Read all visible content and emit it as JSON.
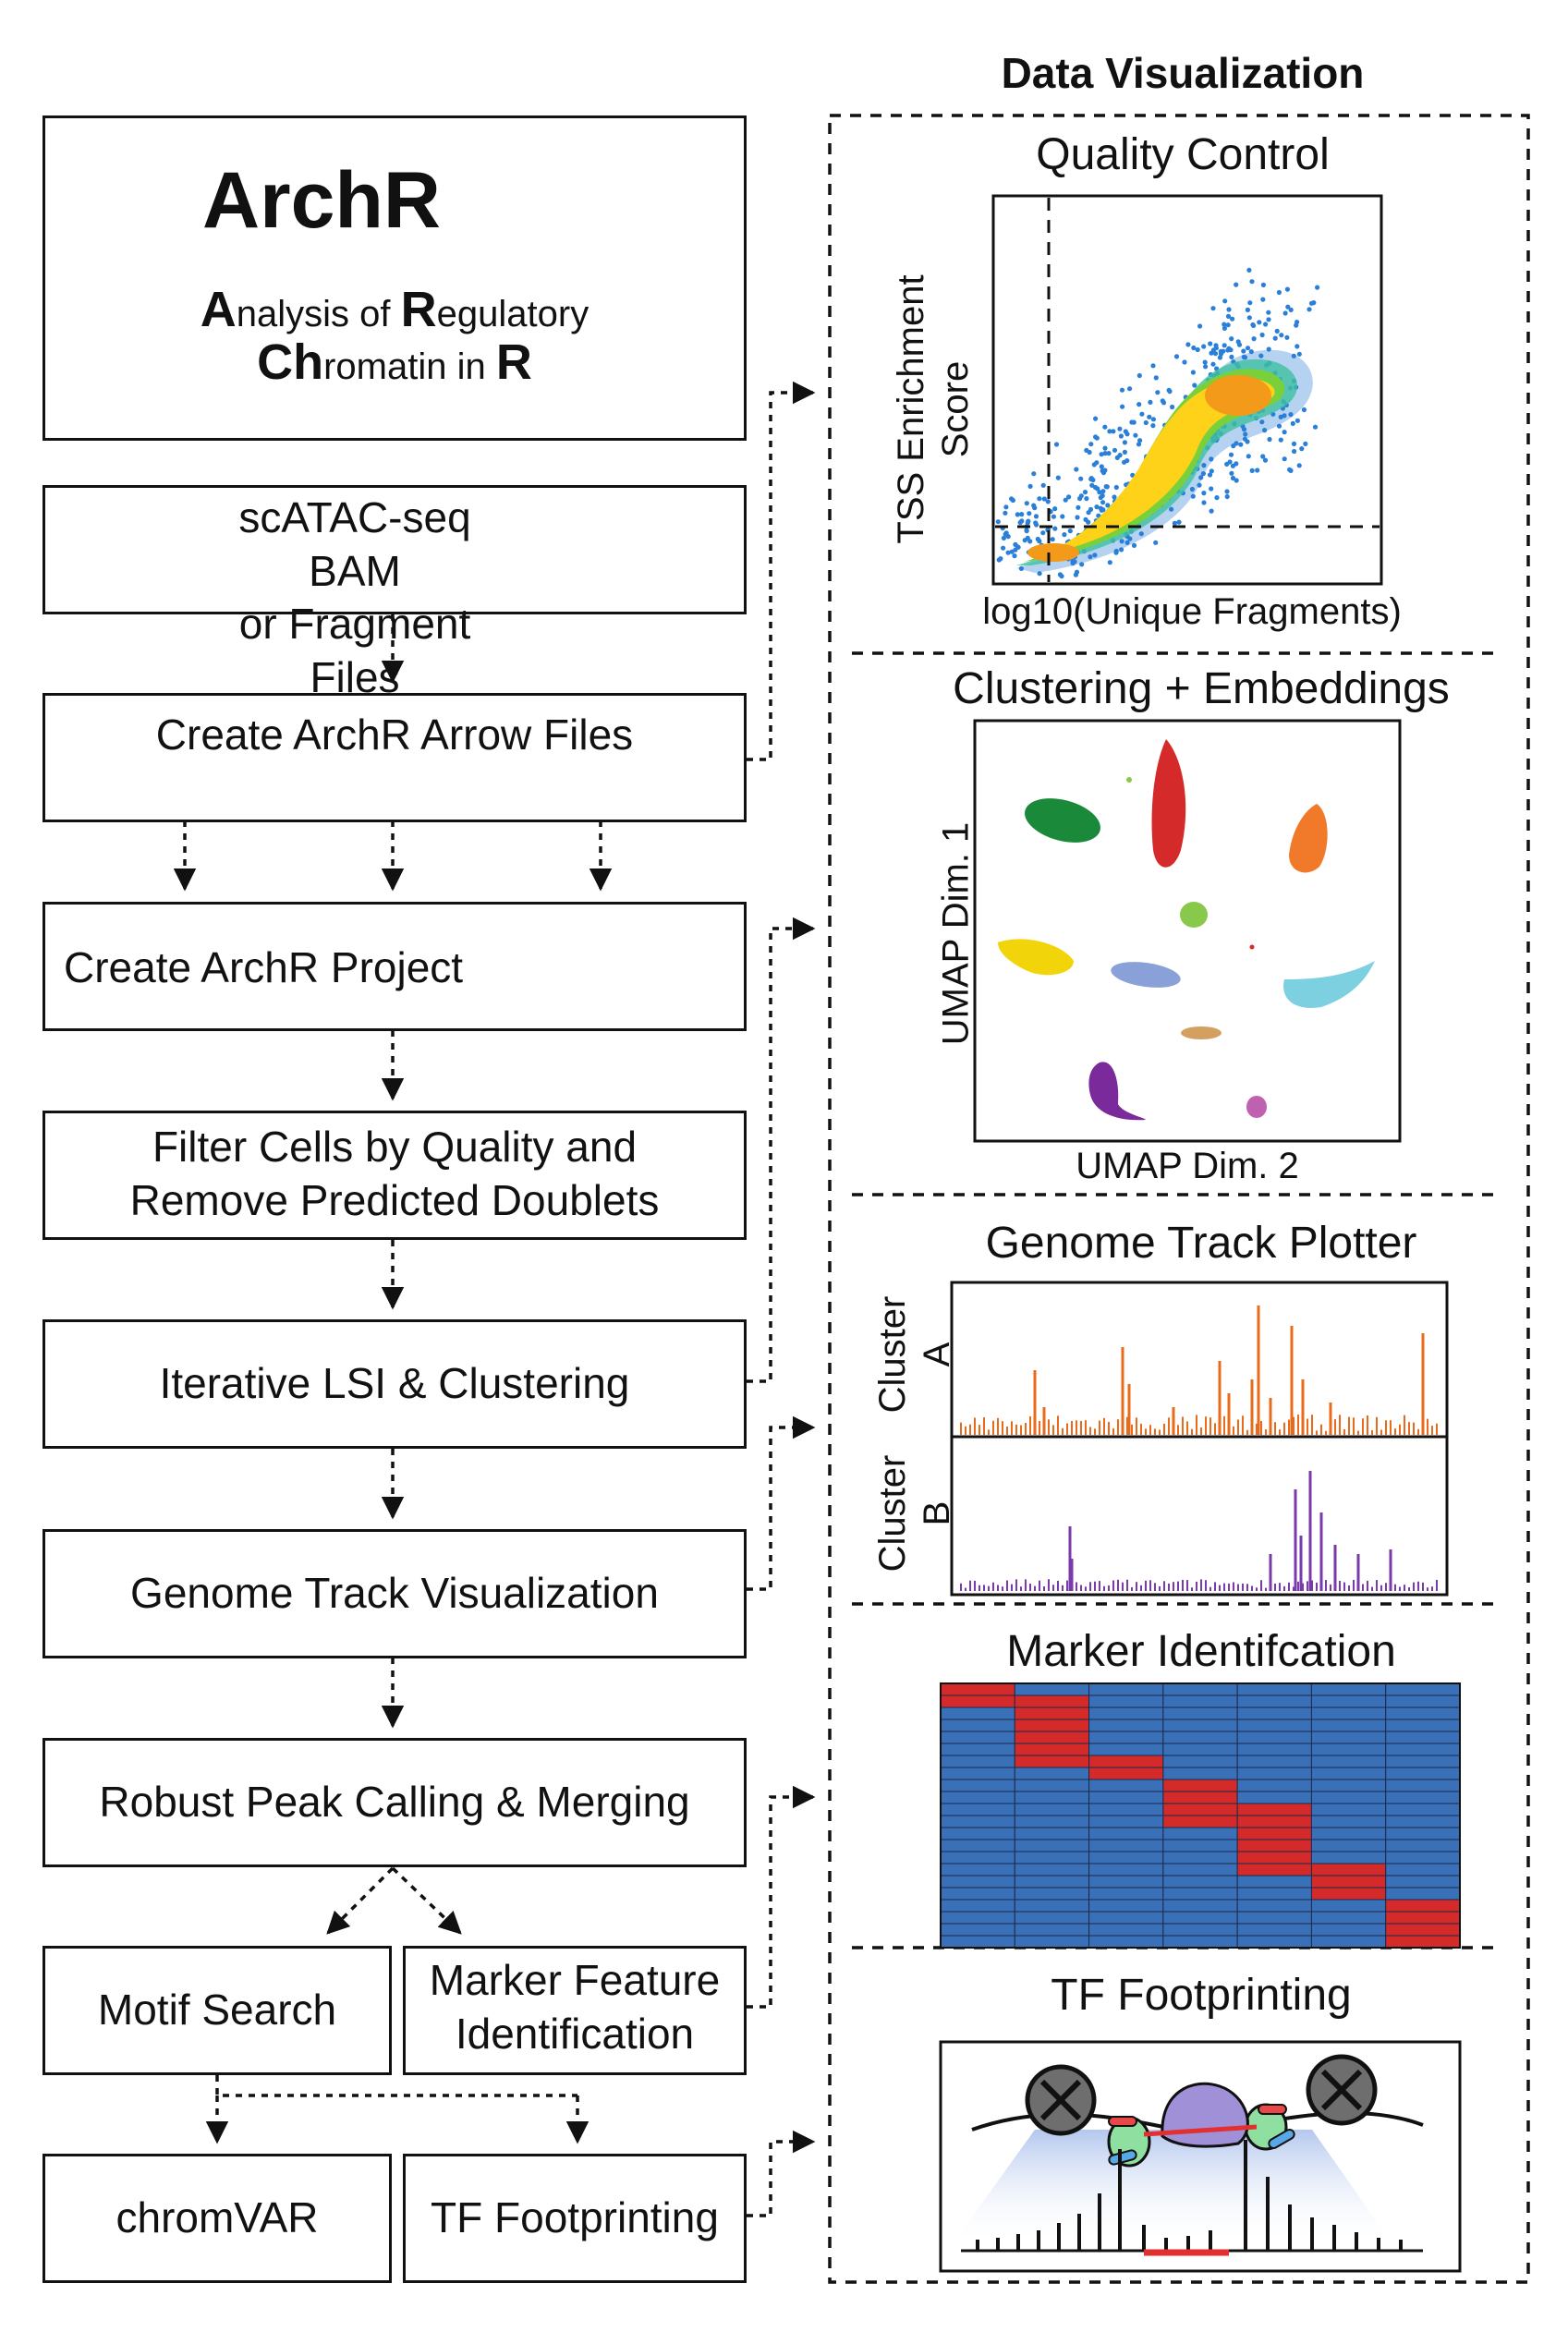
{
  "header": {
    "data_visualization": "Data Visualization"
  },
  "logo": {
    "name": "ArchR",
    "line1": {
      "big1": "A",
      "small1": "nalysis of ",
      "big2": "R",
      "small2": "egulatory"
    },
    "line2": {
      "big1": "Ch",
      "small1": "romatin in ",
      "big2": "R"
    }
  },
  "pipeline": {
    "input": "scATAC-seq BAM\nor Fragment Files",
    "arrow_files": "Create ArchR Arrow Files",
    "project": "Create ArchR Project",
    "filter": "Filter Cells by Quality and\nRemove Predicted Doublets",
    "lsi": "Iterative LSI & Clustering",
    "genome_track": "Genome Track Visualization",
    "peak_calling": "Robust Peak Calling & Merging",
    "motif": "Motif Search",
    "marker": "Marker Feature\nIdentification",
    "chromvar": "chromVAR",
    "footprint": "TF Footprinting"
  },
  "panels": {
    "qc": {
      "title": "Quality Control",
      "xlabel": "log10(Unique Fragments)",
      "ylabel": "TSS Enrichment\nScore"
    },
    "clustering": {
      "title": "Clustering + Embeddings",
      "xlabel": "UMAP Dim. 2",
      "ylabel": "UMAP Dim. 1"
    },
    "genome": {
      "title": "Genome Track Plotter",
      "track_a": "Cluster\nA",
      "track_b": "Cluster\nB"
    },
    "marker": {
      "title": "Marker Identifcation"
    },
    "tf": {
      "title": "TF Footprinting"
    }
  },
  "colors": {
    "cluster_colors": [
      "#1a8a3a",
      "#d42a2a",
      "#f07a2a",
      "#88c84a",
      "#f2d40a",
      "#8aa0d8",
      "#7dd0e0",
      "#d4a060",
      "#7a2a9a",
      "#c060b0"
    ],
    "track_a": "#e86a1a",
    "track_b": "#7a3aaa",
    "heatmap_high": "#d42a2a",
    "heatmap_low": "#3a70b8",
    "folder": "#f4c060"
  },
  "chart_data": {
    "type": "heatmap",
    "rows": 22,
    "columns": 7,
    "high_blocks": [
      {
        "column": 1,
        "rows": [
          0,
          1
        ]
      },
      {
        "column": 2,
        "rows": [
          1,
          2,
          3,
          4,
          5,
          6
        ]
      },
      {
        "column": 3,
        "rows": [
          6,
          7
        ]
      },
      {
        "column": 4,
        "rows": [
          8,
          9,
          10,
          11
        ]
      },
      {
        "column": 5,
        "rows": [
          10,
          11,
          12,
          13,
          14,
          15
        ]
      },
      {
        "column": 6,
        "rows": [
          15,
          16,
          17
        ]
      },
      {
        "column": 7,
        "rows": [
          18,
          19,
          20,
          21
        ]
      }
    ]
  }
}
